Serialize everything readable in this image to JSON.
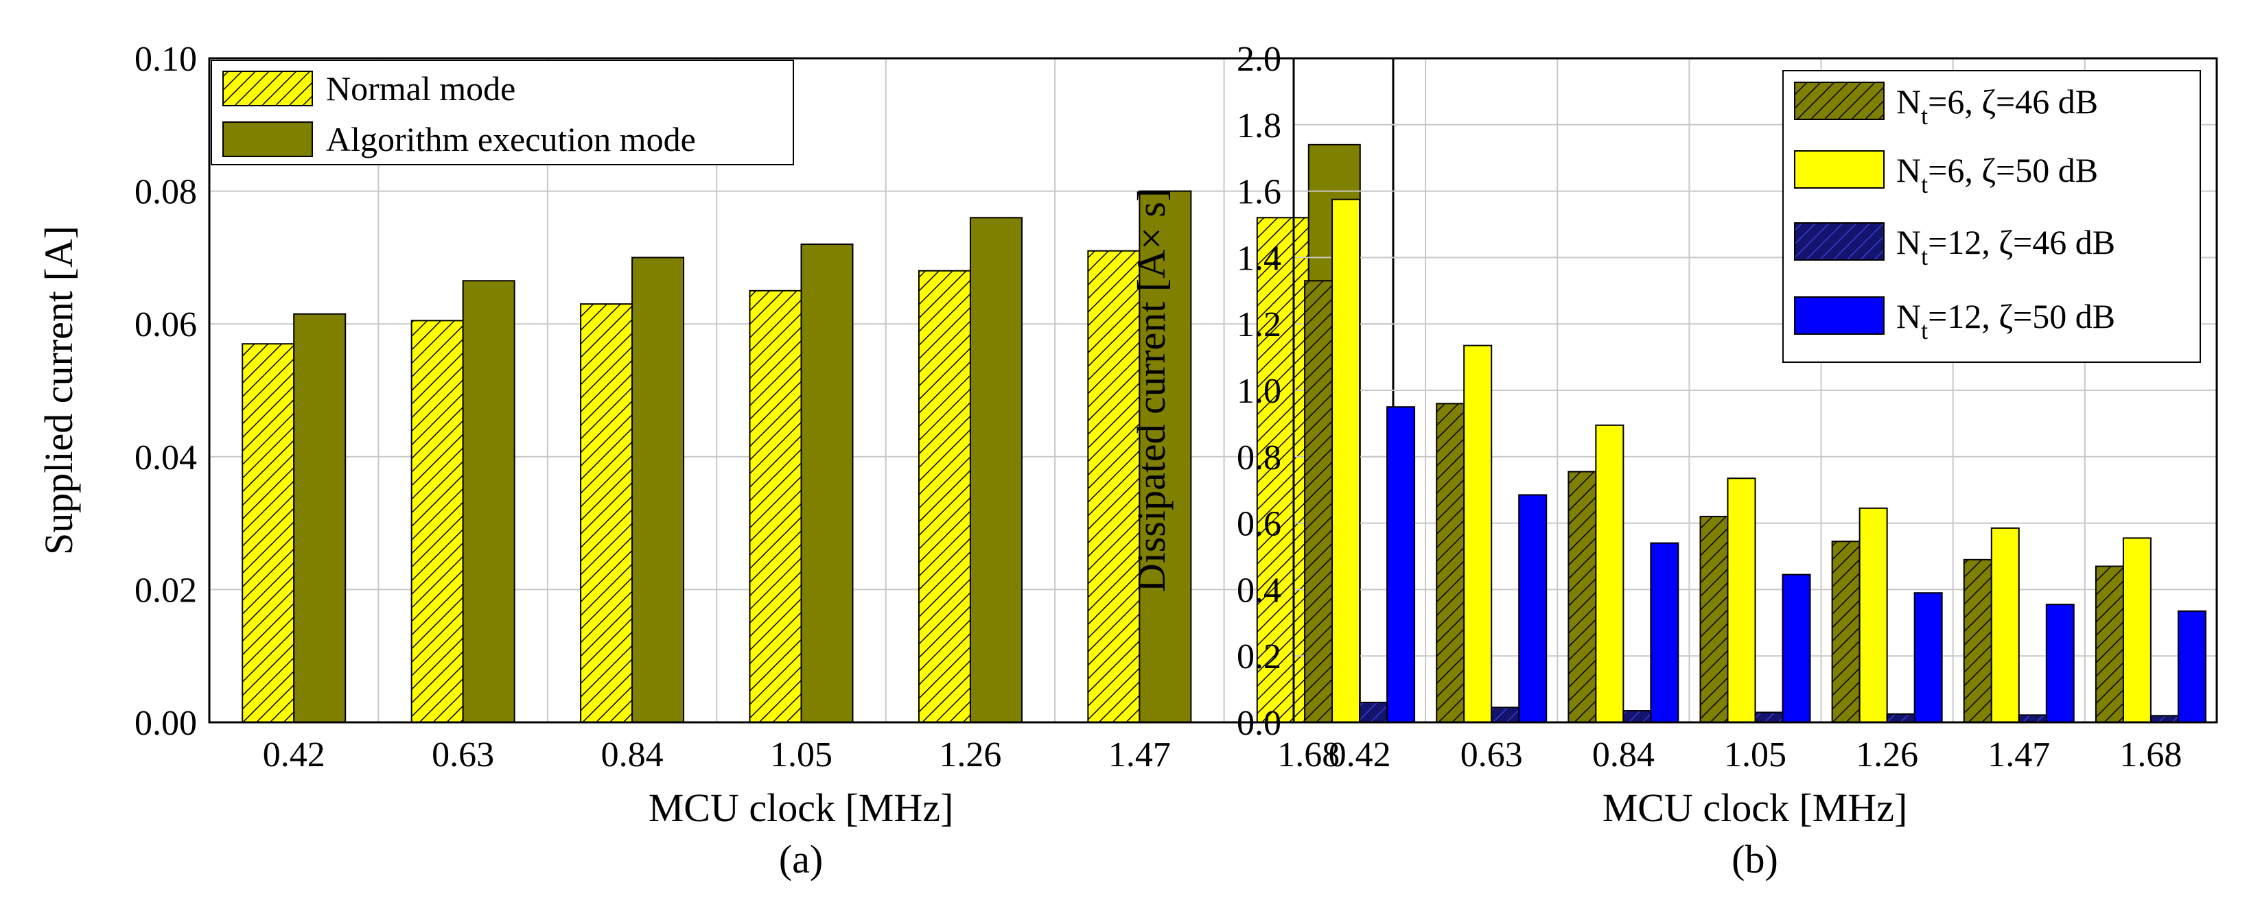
{
  "colors": {
    "olive": "#808000",
    "yellow": "#ffff00",
    "navy": "#14146e",
    "blue": "#0000ff",
    "grid": "#c8c8c8"
  },
  "chart_data": [
    {
      "type": "bar",
      "caption": "(a)",
      "xlabel": "MCU clock [MHz]",
      "ylabel": "Supplied current [A]",
      "categories": [
        "0.42",
        "0.63",
        "0.84",
        "1.05",
        "1.26",
        "1.47",
        "1.68"
      ],
      "ylim": [
        0,
        0.1
      ],
      "yticks": [
        "0.00",
        "0.02",
        "0.04",
        "0.06",
        "0.08",
        "0.10"
      ],
      "ytick_values": [
        0,
        0.02,
        0.04,
        0.06,
        0.08,
        0.1
      ],
      "grid": true,
      "legend_position": "top-left",
      "series": [
        {
          "name": "Normal mode",
          "color": "#ffff00",
          "hatch": true,
          "values": [
            0.057,
            0.0605,
            0.063,
            0.065,
            0.068,
            0.071,
            0.076
          ]
        },
        {
          "name": "Algorithm execution mode",
          "color": "#808000",
          "hatch": false,
          "values": [
            0.0615,
            0.0665,
            0.07,
            0.072,
            0.076,
            0.08,
            0.087
          ]
        }
      ]
    },
    {
      "type": "bar",
      "caption": "(b)",
      "xlabel": "MCU clock [MHz]",
      "ylabel": "Dissipated current [A× s]",
      "categories": [
        "0.42",
        "0.63",
        "0.84",
        "1.05",
        "1.26",
        "1.47",
        "1.68"
      ],
      "ylim": [
        0,
        2.0
      ],
      "yticks": [
        "0.0",
        "0.2",
        "0.4",
        "0.6",
        "0.8",
        "1.0",
        "1.2",
        "1.4",
        "1.6",
        "1.8",
        "2.0"
      ],
      "ytick_values": [
        0,
        0.2,
        0.4,
        0.6,
        0.8,
        1.0,
        1.2,
        1.4,
        1.6,
        1.8,
        2.0
      ],
      "grid": true,
      "legend_position": "top-right",
      "series": [
        {
          "name": "Nt=6, ζ=46 dB",
          "label_main": "N",
          "label_sub": "t",
          "label_rest": "=6, ζ=46 dB",
          "color": "#808000",
          "hatch": true,
          "values": [
            1.33,
            0.96,
            0.755,
            0.62,
            0.545,
            0.49,
            0.47
          ]
        },
        {
          "name": "Nt=6, ζ=50 dB",
          "label_main": "N",
          "label_sub": "t",
          "label_rest": "=6, ζ=50 dB",
          "color": "#ffff00",
          "hatch": false,
          "values": [
            1.575,
            1.135,
            0.895,
            0.735,
            0.645,
            0.585,
            0.555
          ]
        },
        {
          "name": "Nt=12, ζ=46 dB",
          "label_main": "N",
          "label_sub": "t",
          "label_rest": "=12, ζ=46 dB",
          "color": "#14146e",
          "hatch": true,
          "values": [
            0.06,
            0.045,
            0.035,
            0.03,
            0.025,
            0.022,
            0.02
          ]
        },
        {
          "name": "Nt=12, ζ=50 dB",
          "label_main": "N",
          "label_sub": "t",
          "label_rest": "=12, ζ=50 dB",
          "color": "#0000ff",
          "hatch": false,
          "values": [
            0.95,
            0.685,
            0.54,
            0.445,
            0.39,
            0.355,
            0.335
          ]
        }
      ]
    }
  ]
}
